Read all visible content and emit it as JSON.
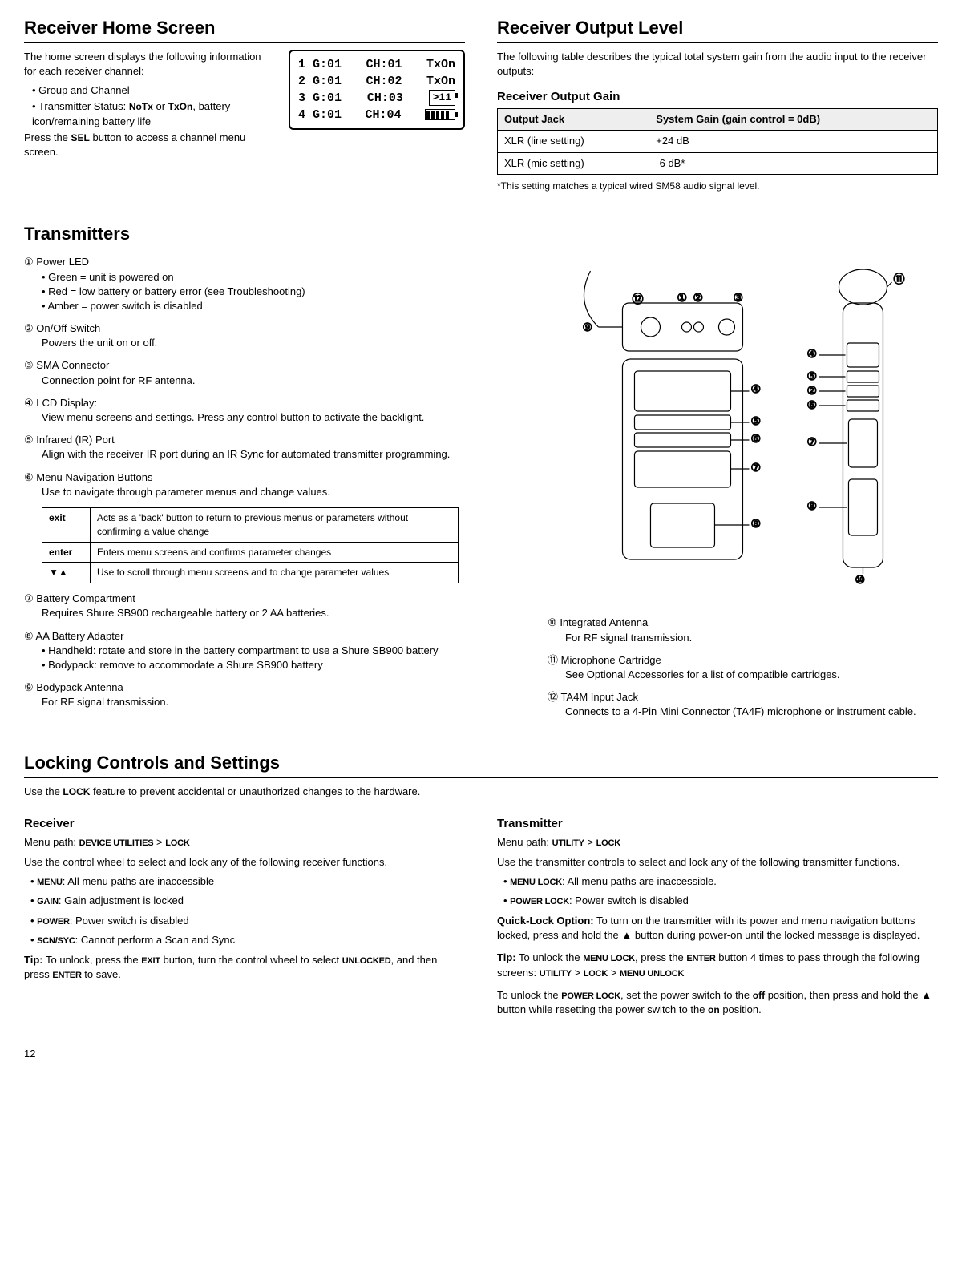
{
  "pageNumber": "12",
  "homeScreen": {
    "title": "Receiver Home Screen",
    "intro": "The home screen displays the following information for each receiver channel:",
    "bullets": [
      "Group and Channel",
      {
        "prefix": "Transmitter Status: ",
        "bold1": "NoTx",
        "mid": " or ",
        "bold2": "TxOn",
        "suffix": ", battery icon/remaining battery life"
      }
    ],
    "press": {
      "prefix": "Press the ",
      "bold": "SEL",
      "suffix": " button to access a channel menu screen."
    },
    "lcd": [
      {
        "n": "1",
        "g": "G:01",
        "ch": "CH:01",
        "status": "TxOn"
      },
      {
        "n": "2",
        "g": "G:01",
        "ch": "CH:02",
        "status": "TxOn"
      },
      {
        "n": "3",
        "g": "G:01",
        "ch": "CH:03",
        "gain": ">11"
      },
      {
        "n": "4",
        "g": "G:01",
        "ch": "CH:04",
        "batt": true
      }
    ]
  },
  "outputLevel": {
    "title": "Receiver Output Level",
    "intro": "The following table describes the typical total system gain from the audio input to the receiver outputs:",
    "tableTitle": "Receiver Output Gain",
    "headers": [
      "Output Jack",
      "System Gain (gain control = 0dB)"
    ],
    "rows": [
      [
        "XLR (line setting)",
        "+24 dB"
      ],
      [
        "XLR (mic setting)",
        "-6 dB*"
      ]
    ],
    "footnote": "*This setting matches a typical wired SM58 audio signal level."
  },
  "transmitters": {
    "title": "Transmitters",
    "leftItems": [
      {
        "n": "①",
        "title": "Power LED",
        "bullets": [
          "Green = unit is powered on",
          "Red = low battery or battery error (see Troubleshooting)",
          "Amber = power switch is disabled"
        ]
      },
      {
        "n": "②",
        "title": "On/Off Switch",
        "desc": "Powers the unit on or off."
      },
      {
        "n": "③",
        "title": "SMA Connector",
        "desc": "Connection point for RF antenna."
      },
      {
        "n": "④",
        "title": "LCD Display:",
        "desc": "View menu screens and settings. Press any control button to activate the backlight."
      },
      {
        "n": "⑤",
        "title": "Infrared (IR) Port",
        "desc": "Align with the receiver IR port during an IR Sync for automated transmitter programming."
      },
      {
        "n": "⑥",
        "title": "Menu Navigation Buttons",
        "desc": "Use to navigate through parameter menus and change values."
      }
    ],
    "navTable": [
      [
        "exit",
        "Acts as a 'back' button to return to previous menus or parameters without confirming a value change"
      ],
      [
        "enter",
        "Enters menu screens and confirms parameter changes"
      ],
      [
        "▼▲",
        "Use to scroll through menu screens and to change parameter values"
      ]
    ],
    "leftItems2": [
      {
        "n": "⑦",
        "title": "Battery Compartment",
        "desc": "Requires Shure SB900 rechargeable battery or 2 AA batteries."
      },
      {
        "n": "⑧",
        "title": "AA Battery Adapter",
        "bullets": [
          "Handheld: rotate and store in the battery compartment to use a Shure SB900 battery",
          "Bodypack: remove to accommodate a Shure SB900 battery"
        ]
      },
      {
        "n": "⑨",
        "title": "Bodypack Antenna",
        "desc": "For RF signal transmission."
      }
    ],
    "rightItems": [
      {
        "n": "⑩",
        "title": "Integrated Antenna",
        "desc": "For RF signal transmission."
      },
      {
        "n": "⑪",
        "title": "Microphone Cartridge",
        "desc": "See Optional Accessories for a list of compatible cartridges."
      },
      {
        "n": "⑫",
        "title": "TA4M Input Jack",
        "desc": "Connects to a 4-Pin Mini Connector (TA4F) microphone or instrument cable."
      }
    ]
  },
  "locking": {
    "title": "Locking Controls and Settings",
    "intro": {
      "prefix": "Use the ",
      "bold": "LOCK",
      "suffix": " feature to prevent accidental or unauthorized changes to the hardware."
    },
    "receiver": {
      "title": "Receiver",
      "menuPath": {
        "label": "Menu path: ",
        "p1": "DEVICE UTILITIES",
        "sep": " > ",
        "p2": "LOCK"
      },
      "intro": "Use the control wheel to select and lock any of the following receiver functions.",
      "items": [
        {
          "bold": "MENU",
          "text": ": All menu paths are inaccessible"
        },
        {
          "bold": "GAIN",
          "text": ": Gain adjustment is locked"
        },
        {
          "bold": "POWER",
          "text": ": Power switch is disabled"
        },
        {
          "bold": "SCN/SYC",
          "text": ": Cannot perform a Scan and Sync"
        }
      ],
      "tip": {
        "label": "Tip:",
        "t1": " To unlock, press the ",
        "b1": "EXIT",
        "t2": " button, turn the control wheel to select ",
        "b2": "UNLOCKED",
        "t3": ", and then press ",
        "b3": "ENTER",
        "t4": " to save."
      }
    },
    "transmitter": {
      "title": "Transmitter",
      "menuPath": {
        "label": "Menu path: ",
        "p1": "UTILITY",
        "sep": " > ",
        "p2": "LOCK"
      },
      "intro": "Use the transmitter controls to select and lock any of the following transmitter functions.",
      "items": [
        {
          "bold": "MENU LOCK",
          "text": ": All menu paths are inaccessible."
        },
        {
          "bold": "POWER LOCK",
          "text": ": Power switch is disabled"
        }
      ],
      "quickLock": {
        "label": "Quick-Lock Option:",
        "text": " To turn on the transmitter with its power and menu navigation buttons locked, press and hold the ▲ button during power-on until the locked message is displayed."
      },
      "tip": {
        "label": "Tip:",
        "t1": " To unlock the ",
        "b1": "MENU LOCK",
        "t2": ", press the ",
        "b2": "ENTER",
        "t3": " button 4 times to pass through the following screens: ",
        "b3": "UTILITY",
        "t4": " > ",
        "b4": "LOCK",
        "t5": " > ",
        "b5": "MENU UNLOCK"
      },
      "powerUnlock": {
        "t1": "To unlock the ",
        "b1": "POWER LOCK",
        "t2": ", set the power switch to the ",
        "b2": "off",
        "t3": " position, then press and hold the ▲ button while resetting the power switch to the ",
        "b3": "on",
        "t4": " position."
      }
    }
  }
}
